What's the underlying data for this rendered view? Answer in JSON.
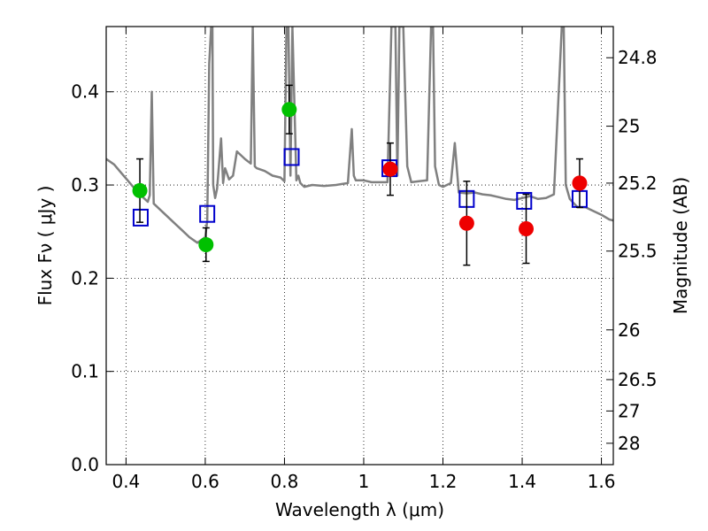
{
  "chart_data": {
    "type": "scatter",
    "xlabel": "Wavelength  λ (μm)",
    "ylabel": "Flux  Fν  ( μJy )",
    "y2label": "Magnitude (AB)",
    "xlim": [
      0.35,
      1.63
    ],
    "ylim": [
      0.0,
      0.47
    ],
    "grid": true,
    "x_ticks": [
      0.4,
      0.6,
      0.8,
      1.0,
      1.2,
      1.4,
      1.6
    ],
    "x_tick_labels": [
      "0.4",
      "0.6",
      "0.8",
      "1",
      "1.2",
      "1.4",
      "1.6"
    ],
    "y_ticks": [
      0.0,
      0.1,
      0.2,
      0.3,
      0.4
    ],
    "y_tick_labels": [
      "0.0",
      "0.1",
      "0.2",
      "0.3",
      "0.4"
    ],
    "y2_ticks": [
      24.8,
      25.0,
      25.2,
      25.5,
      26.0,
      26.5,
      27.0,
      28.0
    ],
    "y2_tick_labels": [
      "24.8",
      "25",
      "25.2",
      "25.5",
      "26",
      "26.5",
      "27",
      "28"
    ],
    "series": [
      {
        "kind": "line",
        "color": "#808080",
        "x": [
          0.35,
          0.37,
          0.39,
          0.41,
          0.43,
          0.45,
          0.455,
          0.46,
          0.465,
          0.47,
          0.48,
          0.5,
          0.52,
          0.54,
          0.56,
          0.58,
          0.6,
          0.605,
          0.61,
          0.615,
          0.618,
          0.62,
          0.625,
          0.63,
          0.64,
          0.645,
          0.65,
          0.66,
          0.67,
          0.68,
          0.7,
          0.715,
          0.72,
          0.725,
          0.73,
          0.75,
          0.77,
          0.79,
          0.8,
          0.805,
          0.81,
          0.815,
          0.82,
          0.83,
          0.835,
          0.84,
          0.85,
          0.87,
          0.9,
          0.93,
          0.96,
          0.97,
          0.975,
          0.98,
          1.0,
          1.02,
          1.04,
          1.06,
          1.07,
          1.08,
          1.085,
          1.09,
          1.1,
          1.11,
          1.12,
          1.14,
          1.16,
          1.17,
          1.175,
          1.18,
          1.19,
          1.2,
          1.22,
          1.23,
          1.24,
          1.26,
          1.28,
          1.3,
          1.32,
          1.34,
          1.36,
          1.38,
          1.4,
          1.42,
          1.44,
          1.46,
          1.48,
          1.5,
          1.505,
          1.51,
          1.52,
          1.54,
          1.56,
          1.58,
          1.6,
          1.62,
          1.63
        ],
        "y": [
          0.328,
          0.322,
          0.312,
          0.302,
          0.292,
          0.284,
          0.282,
          0.289,
          0.4,
          0.28,
          0.276,
          0.268,
          0.26,
          0.252,
          0.244,
          0.238,
          0.244,
          0.262,
          0.43,
          0.47,
          0.47,
          0.3,
          0.286,
          0.296,
          0.35,
          0.302,
          0.318,
          0.306,
          0.31,
          0.336,
          0.328,
          0.323,
          0.47,
          0.32,
          0.318,
          0.315,
          0.31,
          0.308,
          0.304,
          0.47,
          0.47,
          0.31,
          0.47,
          0.305,
          0.31,
          0.302,
          0.298,
          0.3,
          0.299,
          0.3,
          0.302,
          0.36,
          0.31,
          0.305,
          0.305,
          0.303,
          0.303,
          0.303,
          0.47,
          0.47,
          0.31,
          0.47,
          0.47,
          0.32,
          0.303,
          0.304,
          0.305,
          0.47,
          0.47,
          0.32,
          0.3,
          0.298,
          0.302,
          0.345,
          0.292,
          0.291,
          0.292,
          0.29,
          0.289,
          0.287,
          0.285,
          0.284,
          0.286,
          0.288,
          0.285,
          0.286,
          0.29,
          0.47,
          0.47,
          0.3,
          0.285,
          0.276,
          0.276,
          0.272,
          0.268,
          0.263,
          0.262
        ]
      },
      {
        "kind": "open-square",
        "color": "#0000cc",
        "x": [
          0.437,
          0.605,
          0.818,
          1.065,
          1.26,
          1.405,
          1.545
        ],
        "y": [
          0.265,
          0.269,
          0.33,
          0.318,
          0.285,
          0.283,
          0.285
        ]
      },
      {
        "kind": "dot",
        "color": "#00c000",
        "x": [
          0.435,
          0.602,
          0.812
        ],
        "y": [
          0.294,
          0.236,
          0.381
        ],
        "err": [
          0.034,
          0.018,
          0.026
        ]
      },
      {
        "kind": "dot",
        "color": "#ee0000",
        "x": [
          1.067,
          1.26,
          1.41,
          1.545
        ],
        "y": [
          0.317,
          0.259,
          0.253,
          0.302
        ],
        "err": [
          0.028,
          0.045,
          0.037,
          0.026
        ]
      }
    ]
  }
}
